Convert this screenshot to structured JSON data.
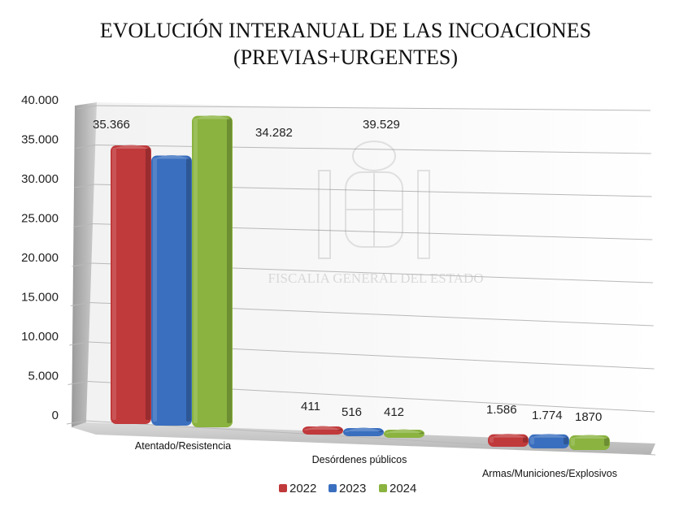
{
  "chart_data": {
    "type": "bar",
    "title_line1": "EVOLUCIÓN INTERANUAL DE LAS INCOACIONES",
    "title_line2": "(PREVIAS+URGENTES)",
    "categories": [
      "Atentado/Resistencia",
      "Desórdenes públicos",
      "Armas/Municiones/Explosivos"
    ],
    "series": [
      {
        "name": "2022",
        "color": "#c0393b",
        "values": [
          35366,
          411,
          1586
        ],
        "labels": [
          "35.366",
          "411",
          "1.586"
        ]
      },
      {
        "name": "2023",
        "color": "#3a6fbf",
        "values": [
          34282,
          516,
          1774
        ],
        "labels": [
          "34.282",
          "516",
          "1.774"
        ]
      },
      {
        "name": "2024",
        "color": "#8ab33f",
        "values": [
          39529,
          412,
          1870
        ],
        "labels": [
          "39.529",
          "412",
          "1870"
        ]
      }
    ],
    "y_ticks": [
      "0",
      "5.000",
      "10.000",
      "15.000",
      "20.000",
      "25.000",
      "30.000",
      "35.000",
      "40.000"
    ],
    "ylim": [
      0,
      40000
    ],
    "grid": true,
    "legend_position": "bottom",
    "watermark": "FISCALIA GENERAL DEL ESTADO"
  }
}
